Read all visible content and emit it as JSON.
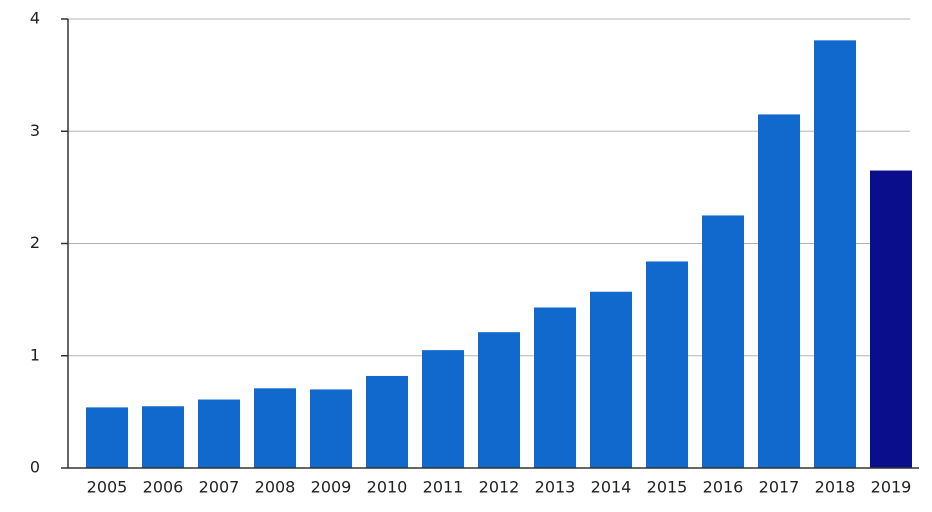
{
  "chart_data": {
    "type": "bar",
    "categories": [
      "2005",
      "2006",
      "2007",
      "2008",
      "2009",
      "2010",
      "2011",
      "2012",
      "2013",
      "2014",
      "2015",
      "2016",
      "2017",
      "2018",
      "2019"
    ],
    "values": [
      0.54,
      0.55,
      0.61,
      0.71,
      0.7,
      0.82,
      1.05,
      1.21,
      1.43,
      1.57,
      1.84,
      2.25,
      3.15,
      3.81,
      2.65
    ],
    "colors": [
      "#1169cd",
      "#1169cd",
      "#1169cd",
      "#1169cd",
      "#1169cd",
      "#1169cd",
      "#1169cd",
      "#1169cd",
      "#1169cd",
      "#1169cd",
      "#1169cd",
      "#1169cd",
      "#1169cd",
      "#1169cd",
      "#0a0d8c"
    ],
    "ylim": [
      0,
      4
    ],
    "yticks": [
      0,
      1,
      2,
      3,
      4
    ],
    "grid": true
  }
}
